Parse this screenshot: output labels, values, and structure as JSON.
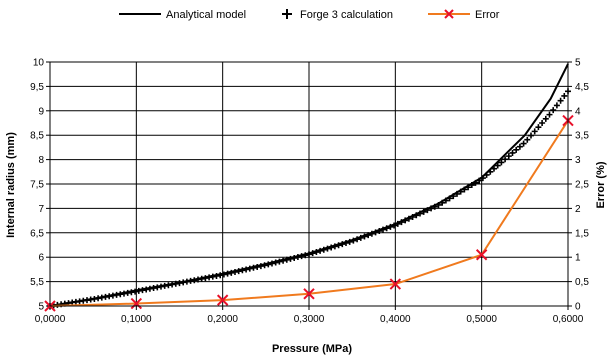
{
  "chart_data": {
    "type": "line",
    "xlabel": "Pressure (MPa)",
    "ylabel": "Internal radius (mm)",
    "y2label": "Error (%)",
    "xlim": [
      0,
      0.6
    ],
    "ylim": [
      5,
      10
    ],
    "y2lim": [
      0,
      5
    ],
    "x_ticks": [
      0,
      0.1,
      0.2,
      0.3,
      0.4,
      0.5,
      0.6
    ],
    "x_tick_labels": [
      "0,0000",
      "0,1000",
      "0,2000",
      "0,3000",
      "0,4000",
      "0,5000",
      "0,6000"
    ],
    "y_ticks": [
      5,
      5.5,
      6,
      6.5,
      7,
      7.5,
      8,
      8.5,
      9,
      9.5,
      10
    ],
    "y_tick_labels": [
      "5",
      "5,5",
      "6",
      "6,5",
      "7",
      "7,5",
      "8",
      "8,5",
      "9",
      "9,5",
      "10"
    ],
    "y2_ticks": [
      0,
      0.5,
      1,
      1.5,
      2,
      2.5,
      3,
      3.5,
      4,
      4.5,
      5
    ],
    "y2_tick_labels": [
      "0",
      "0,5",
      "1",
      "1,5",
      "2",
      "2,5",
      "3",
      "3,5",
      "4",
      "4,5",
      "5"
    ],
    "grid": {
      "vertical": true,
      "horizontal": true
    },
    "legend_position": "top",
    "series": [
      {
        "name": "Analytical model",
        "axis": "left",
        "style": "line",
        "color": "#000000",
        "x": [
          0,
          0.05,
          0.1,
          0.15,
          0.2,
          0.25,
          0.3,
          0.35,
          0.4,
          0.45,
          0.5,
          0.55,
          0.58,
          0.6
        ],
        "values": [
          5.0,
          5.15,
          5.32,
          5.48,
          5.66,
          5.86,
          6.08,
          6.35,
          6.68,
          7.1,
          7.63,
          8.5,
          9.25,
          9.96
        ]
      },
      {
        "name": "Forge 3 calculation",
        "axis": "left",
        "style": "markers-plus",
        "color": "#000000",
        "x": [
          0,
          0.05,
          0.1,
          0.15,
          0.2,
          0.25,
          0.3,
          0.35,
          0.4,
          0.45,
          0.5,
          0.55,
          0.58,
          0.6
        ],
        "values": [
          5.0,
          5.14,
          5.3,
          5.47,
          5.64,
          5.84,
          6.06,
          6.33,
          6.66,
          7.07,
          7.6,
          8.35,
          8.95,
          9.4
        ]
      },
      {
        "name": "Error",
        "axis": "right",
        "style": "line-markers-x",
        "color": "#f07a1e",
        "marker_color": "#e8102a",
        "x": [
          0,
          0.1,
          0.2,
          0.3,
          0.4,
          0.5,
          0.6
        ],
        "values": [
          0,
          0.05,
          0.12,
          0.25,
          0.45,
          1.05,
          3.8
        ]
      }
    ]
  }
}
